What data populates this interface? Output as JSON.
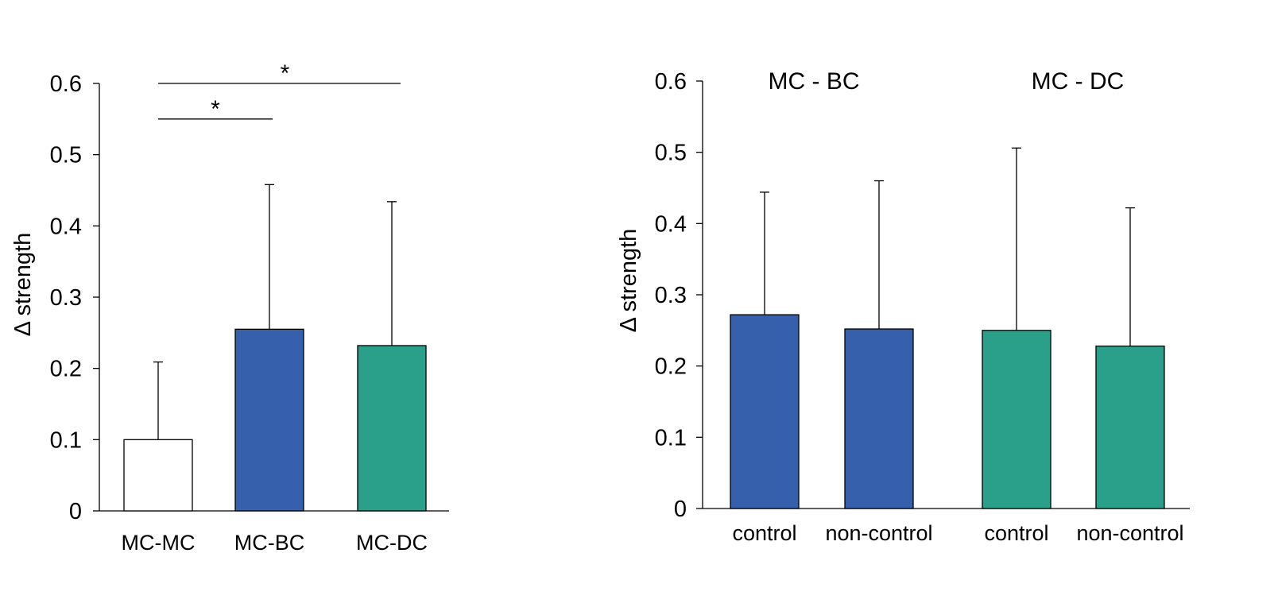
{
  "chart_data": [
    {
      "type": "bar",
      "ylabel": "Δ strength",
      "ylim": [
        0,
        0.6
      ],
      "yticks": [
        0,
        0.1,
        0.2,
        0.3,
        0.4,
        0.5,
        0.6
      ],
      "ytick_labels": [
        "0",
        "0.1",
        "0.2",
        "0.3",
        "0.4",
        "0.5",
        "0.6"
      ],
      "categories": [
        "MC-MC",
        "MC-BC",
        "MC-DC"
      ],
      "values": [
        0.1,
        0.255,
        0.232
      ],
      "error_upper": [
        0.209,
        0.458,
        0.434
      ],
      "colors": [
        "#ffffff",
        "#3660ab",
        "#2aa08a"
      ],
      "significance": [
        {
          "from": "MC-MC",
          "to": "MC-DC",
          "label": "*",
          "y": 0.6
        },
        {
          "from": "MC-MC",
          "to": "MC-BC",
          "label": "*",
          "y": 0.55
        }
      ]
    },
    {
      "type": "bar",
      "ylabel": "Δ strength",
      "ylim": [
        0,
        0.6
      ],
      "yticks": [
        0,
        0.1,
        0.2,
        0.3,
        0.4,
        0.5,
        0.6
      ],
      "ytick_labels": [
        "0",
        "0.1",
        "0.2",
        "0.3",
        "0.4",
        "0.5",
        "0.6"
      ],
      "groups": [
        "MC - BC",
        "MC - DC"
      ],
      "categories": [
        "control",
        "non-control",
        "control",
        "non-control"
      ],
      "values": [
        0.272,
        0.252,
        0.25,
        0.228
      ],
      "error_upper": [
        0.444,
        0.46,
        0.506,
        0.422
      ],
      "colors": [
        "#3660ab",
        "#3660ab",
        "#2aa08a",
        "#2aa08a"
      ]
    }
  ]
}
